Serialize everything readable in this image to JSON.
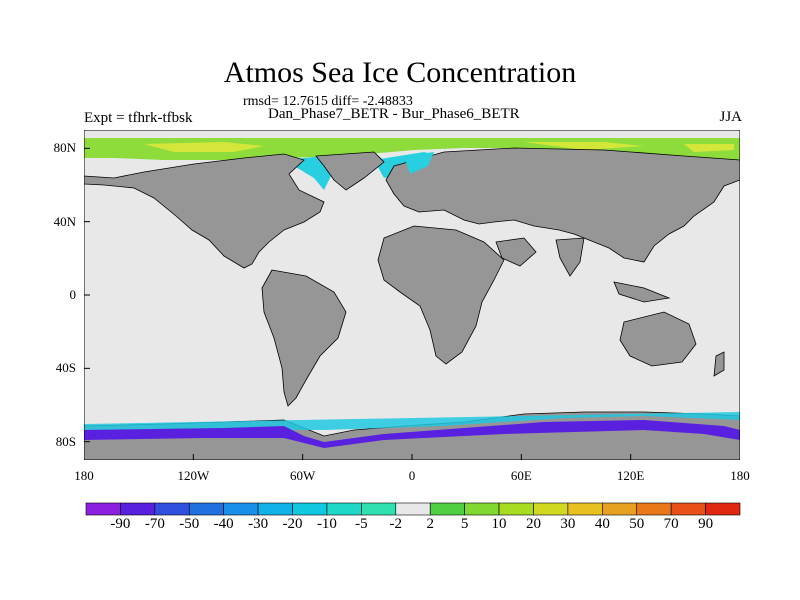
{
  "title": "Atmos Sea Ice Concentration",
  "stats": "rmsd= 12.7615 diff= -2.48833",
  "subtitle": "Dan_Phase7_BETR - Bur_Phase6_BETR",
  "experiment": "Expt = tfhrk-tfbsk",
  "season": "JJA",
  "map": {
    "projection": "cylindrical equidistant",
    "lon_range": [
      -180,
      180
    ],
    "lat_range": [
      -90,
      90
    ],
    "lat_ticks": [
      {
        "value": 80,
        "label": "80N"
      },
      {
        "value": 40,
        "label": "40N"
      },
      {
        "value": 0,
        "label": "0"
      },
      {
        "value": -40,
        "label": "40S"
      },
      {
        "value": -80,
        "label": "80S"
      }
    ],
    "lon_ticks": [
      {
        "value": -180,
        "label": "180"
      },
      {
        "value": -120,
        "label": "120W"
      },
      {
        "value": -60,
        "label": "60W"
      },
      {
        "value": 0,
        "label": "0"
      },
      {
        "value": 60,
        "label": "60E"
      },
      {
        "value": 120,
        "label": "120E"
      },
      {
        "value": 180,
        "label": "180"
      }
    ],
    "land_color": "#969696",
    "ocean_color": "#e8e8e8"
  },
  "colorbar": {
    "levels": [
      "-90",
      "-70",
      "-50",
      "-40",
      "-30",
      "-20",
      "-10",
      "-5",
      "-2",
      "2",
      "5",
      "10",
      "20",
      "30",
      "40",
      "50",
      "70",
      "90"
    ],
    "colors": [
      "#8c20e0",
      "#5a20e0",
      "#3050e0",
      "#2070e0",
      "#1890e8",
      "#10b0e8",
      "#10c8e0",
      "#20d8c8",
      "#30e0b0",
      "#e8e8e8",
      "#50d040",
      "#80d830",
      "#a8dc20",
      "#d0d820",
      "#e8c020",
      "#e8a020",
      "#e87818",
      "#e85018",
      "#e02810"
    ]
  }
}
